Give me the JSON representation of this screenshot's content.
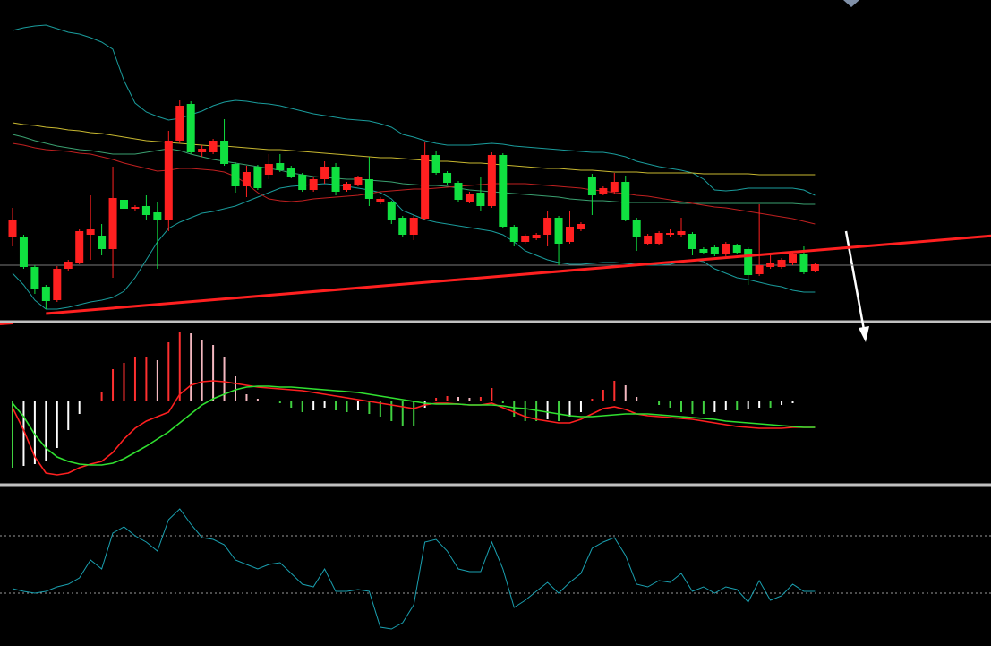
{
  "chart_data": [
    {
      "type": "candlestick",
      "up_color": "#ff2020",
      "down_color": "#10e040",
      "ylim": [
        0,
        358
      ],
      "open": [
        93,
        93,
        60,
        38,
        23,
        58,
        65,
        96,
        95,
        80,
        135,
        125,
        128,
        121,
        112,
        201,
        242,
        188,
        188,
        201,
        175,
        150,
        172,
        163,
        176,
        171,
        163,
        146,
        158,
        172,
        146,
        152,
        158,
        132,
        132,
        115,
        96,
        114,
        185,
        165,
        154,
        133,
        143,
        128,
        185,
        105,
        88,
        92,
        96,
        115,
        88,
        102,
        161,
        142,
        144,
        155,
        113,
        86,
        86,
        96,
        96,
        97,
        80,
        82,
        74,
        84,
        80,
        52,
        60,
        60,
        64,
        74,
        56
      ],
      "high": [
        126,
        96,
        62,
        40,
        61,
        68,
        102,
        140,
        108,
        172,
        146,
        129,
        140,
        133,
        212,
        246,
        245,
        196,
        203,
        225,
        177,
        173,
        174,
        186,
        186,
        173,
        165,
        160,
        178,
        176,
        155,
        162,
        183,
        138,
        134,
        117,
        118,
        200,
        190,
        167,
        156,
        144,
        160,
        188,
        187,
        107,
        97,
        98,
        122,
        117,
        122,
        110,
        164,
        150,
        165,
        162,
        115,
        97,
        100,
        102,
        115,
        99,
        82,
        84,
        88,
        86,
        82,
        130,
        76,
        70,
        76,
        83,
        65
      ],
      "low": [
        83,
        58,
        30,
        13,
        21,
        56,
        63,
        68,
        73,
        48,
        122,
        123,
        113,
        58,
        100,
        198,
        186,
        183,
        186,
        173,
        143,
        138,
        146,
        158,
        166,
        159,
        144,
        144,
        153,
        140,
        144,
        150,
        128,
        130,
        108,
        94,
        90,
        112,
        163,
        152,
        133,
        131,
        122,
        126,
        103,
        83,
        86,
        90,
        83,
        62,
        86,
        100,
        118,
        140,
        142,
        111,
        78,
        84,
        84,
        94,
        94,
        73,
        74,
        72,
        72,
        74,
        40,
        50,
        58,
        58,
        62,
        52,
        54
      ],
      "close": [
        113,
        60,
        36,
        22,
        58,
        66,
        100,
        102,
        80,
        137,
        125,
        127,
        118,
        112,
        201,
        240,
        188,
        192,
        201,
        175,
        150,
        166,
        148,
        175,
        168,
        161,
        146,
        158,
        172,
        144,
        153,
        160,
        136,
        136,
        112,
        96,
        115,
        185,
        165,
        154,
        135,
        142,
        128,
        185,
        105,
        88,
        95,
        96,
        115,
        86,
        105,
        108,
        140,
        148,
        155,
        113,
        93,
        95,
        98,
        98,
        100,
        80,
        76,
        74,
        86,
        76,
        51,
        62,
        64,
        68,
        74,
        54,
        63
      ],
      "series": [
        {
          "color": "#1a9c9c",
          "values": [
            324,
            327,
            329,
            330,
            326,
            322,
            320,
            316,
            311,
            303,
            268,
            243,
            233,
            228,
            224,
            226,
            230,
            234,
            240,
            244,
            246,
            245,
            243,
            242,
            240,
            237,
            234,
            231,
            229,
            227,
            225,
            224,
            223,
            220,
            216,
            208,
            205,
            201,
            198,
            196,
            196,
            196,
            197,
            198,
            197,
            195,
            194,
            193,
            192,
            191,
            190,
            189,
            188,
            188,
            186,
            183,
            178,
            175,
            172,
            170,
            168,
            165,
            158,
            146,
            145,
            146,
            148,
            148,
            148,
            148,
            148,
            146,
            140
          ]
        },
        {
          "color": "#1a9c9c",
          "values": [
            53,
            40,
            23,
            13,
            13,
            15,
            18,
            21,
            23,
            26,
            33,
            48,
            68,
            88,
            103,
            110,
            115,
            120,
            122,
            125,
            128,
            133,
            138,
            143,
            148,
            150,
            151,
            152,
            153,
            152,
            150,
            148,
            146,
            143,
            136,
            123,
            118,
            113,
            110,
            108,
            106,
            104,
            102,
            100,
            96,
            88,
            78,
            73,
            68,
            65,
            63,
            63,
            64,
            65,
            65,
            64,
            63,
            62,
            62,
            63,
            66,
            68,
            66,
            58,
            53,
            48,
            46,
            43,
            40,
            38,
            34,
            32,
            32
          ]
        },
        {
          "color": "#3aa070",
          "values": [
            208,
            205,
            201,
            198,
            195,
            193,
            191,
            190,
            188,
            186,
            186,
            186,
            188,
            190,
            192,
            190,
            186,
            183,
            180,
            178,
            176,
            174,
            172,
            170,
            168,
            165,
            163,
            161,
            160,
            159,
            158,
            158,
            157,
            156,
            155,
            153,
            152,
            151,
            151,
            150,
            148,
            146,
            145,
            144,
            143,
            142,
            141,
            140,
            139,
            138,
            136,
            135,
            134,
            134,
            133,
            132,
            132,
            132,
            132,
            132,
            131,
            131,
            131,
            131,
            131,
            131,
            131,
            131,
            131,
            131,
            131,
            130,
            130
          ]
        },
        {
          "color": "#c8b830",
          "values": [
            221,
            219,
            218,
            216,
            215,
            213,
            212,
            210,
            209,
            207,
            205,
            203,
            201,
            200,
            199,
            198,
            197,
            196,
            195,
            195,
            194,
            193,
            192,
            191,
            191,
            190,
            189,
            188,
            187,
            186,
            185,
            184,
            183,
            182,
            182,
            181,
            180,
            179,
            178,
            178,
            177,
            176,
            176,
            175,
            174,
            173,
            172,
            171,
            170,
            170,
            169,
            168,
            168,
            167,
            166,
            166,
            166,
            165,
            165,
            165,
            165,
            165,
            164,
            164,
            164,
            164,
            164,
            163,
            163,
            163,
            163,
            163,
            163
          ]
        },
        {
          "color": "#c02020",
          "values": [
            198,
            196,
            193,
            191,
            190,
            189,
            187,
            186,
            183,
            180,
            176,
            173,
            170,
            167,
            168,
            170,
            170,
            169,
            168,
            166,
            161,
            153,
            143,
            136,
            134,
            133,
            134,
            136,
            137,
            138,
            139,
            140,
            142,
            144,
            145,
            146,
            147,
            147,
            148,
            149,
            150,
            151,
            152,
            153,
            153,
            153,
            153,
            152,
            151,
            150,
            149,
            148,
            146,
            145,
            143,
            142,
            140,
            139,
            137,
            135,
            133,
            131,
            129,
            127,
            126,
            124,
            122,
            120,
            118,
            116,
            114,
            111,
            108
          ]
        }
      ],
      "trendline": {
        "color": "#ff2020",
        "x": [
          3,
          88
        ],
        "values": [
          8,
          95
        ]
      },
      "reference_line": {
        "color": "#7a7a7a",
        "value": 62
      }
    },
    {
      "type": "macd",
      "ylim": [
        -93,
        87
      ],
      "colors": {
        "up": "#ff3030",
        "up_fading": "#f4b8c0",
        "down": "#40d040",
        "down_fading": "#ffffff"
      },
      "values": [
        -75,
        -73,
        -71,
        -68,
        -53,
        -33,
        -15,
        0,
        10,
        35,
        42,
        49,
        49,
        45,
        65,
        77,
        75,
        67,
        62,
        49,
        27,
        7,
        2,
        -1,
        -3,
        -8,
        -13,
        -11,
        -8,
        -11,
        -13,
        -11,
        -15,
        -18,
        -23,
        -28,
        -28,
        -8,
        3,
        5,
        4,
        3,
        4,
        14,
        -3,
        -18,
        -23,
        -23,
        -21,
        -23,
        -18,
        -13,
        2,
        12,
        22,
        17,
        4,
        -1,
        -5,
        -8,
        -13,
        -15,
        -15,
        -13,
        -11,
        -11,
        -10,
        -8,
        -8,
        -5,
        -3,
        -1,
        -1
      ],
      "series": [
        {
          "color": "#ff2020",
          "values": [
            -8,
            -33,
            -63,
            -81,
            -83,
            -81,
            -75,
            -71,
            -68,
            -58,
            -43,
            -31,
            -23,
            -18,
            -13,
            7,
            17,
            21,
            22,
            21,
            19,
            17,
            15,
            14,
            13,
            12,
            11,
            9,
            7,
            5,
            3,
            1,
            -1,
            -3,
            -5,
            -7,
            -9,
            -5,
            -3,
            -3,
            -4,
            -5,
            -5,
            -3,
            -8,
            -13,
            -18,
            -21,
            -23,
            -25,
            -25,
            -21,
            -15,
            -9,
            -7,
            -10,
            -15,
            -17,
            -18,
            -19,
            -20,
            -21,
            -23,
            -25,
            -27,
            -29,
            -30,
            -31,
            -31,
            -31,
            -30,
            -30,
            -30
          ]
        },
        {
          "color": "#30e030",
          "values": [
            -3,
            -18,
            -38,
            -53,
            -63,
            -68,
            -71,
            -72,
            -72,
            -70,
            -65,
            -58,
            -51,
            -43,
            -35,
            -25,
            -15,
            -5,
            2,
            7,
            12,
            15,
            16,
            16,
            15,
            15,
            14,
            13,
            12,
            11,
            10,
            9,
            7,
            5,
            3,
            1,
            -1,
            -3,
            -4,
            -4,
            -4,
            -5,
            -5,
            -5,
            -6,
            -8,
            -9,
            -11,
            -13,
            -15,
            -17,
            -18,
            -18,
            -17,
            -16,
            -15,
            -15,
            -15,
            -16,
            -17,
            -18,
            -19,
            -20,
            -21,
            -23,
            -24,
            -25,
            -26,
            -27,
            -28,
            -29,
            -30,
            -30
          ]
        }
      ]
    },
    {
      "type": "line",
      "ylim": [
        0,
        179
      ],
      "levels": [
        123,
        59
      ],
      "series": [
        {
          "color": "#1aa0b0",
          "values": [
            64,
            61,
            59,
            61,
            66,
            69,
            76,
            96,
            86,
            126,
            133,
            123,
            116,
            106,
            141,
            153,
            136,
            121,
            119,
            113,
            96,
            91,
            86,
            91,
            93,
            81,
            69,
            66,
            86,
            61,
            61,
            63,
            61,
            21,
            19,
            26,
            46,
            116,
            119,
            106,
            86,
            83,
            83,
            116,
            86,
            43,
            51,
            61,
            71,
            59,
            71,
            81,
            109,
            116,
            121,
            101,
            69,
            66,
            73,
            71,
            81,
            61,
            66,
            59,
            66,
            63,
            49,
            73,
            51,
            56,
            69,
            61,
            61
          ]
        }
      ]
    }
  ]
}
